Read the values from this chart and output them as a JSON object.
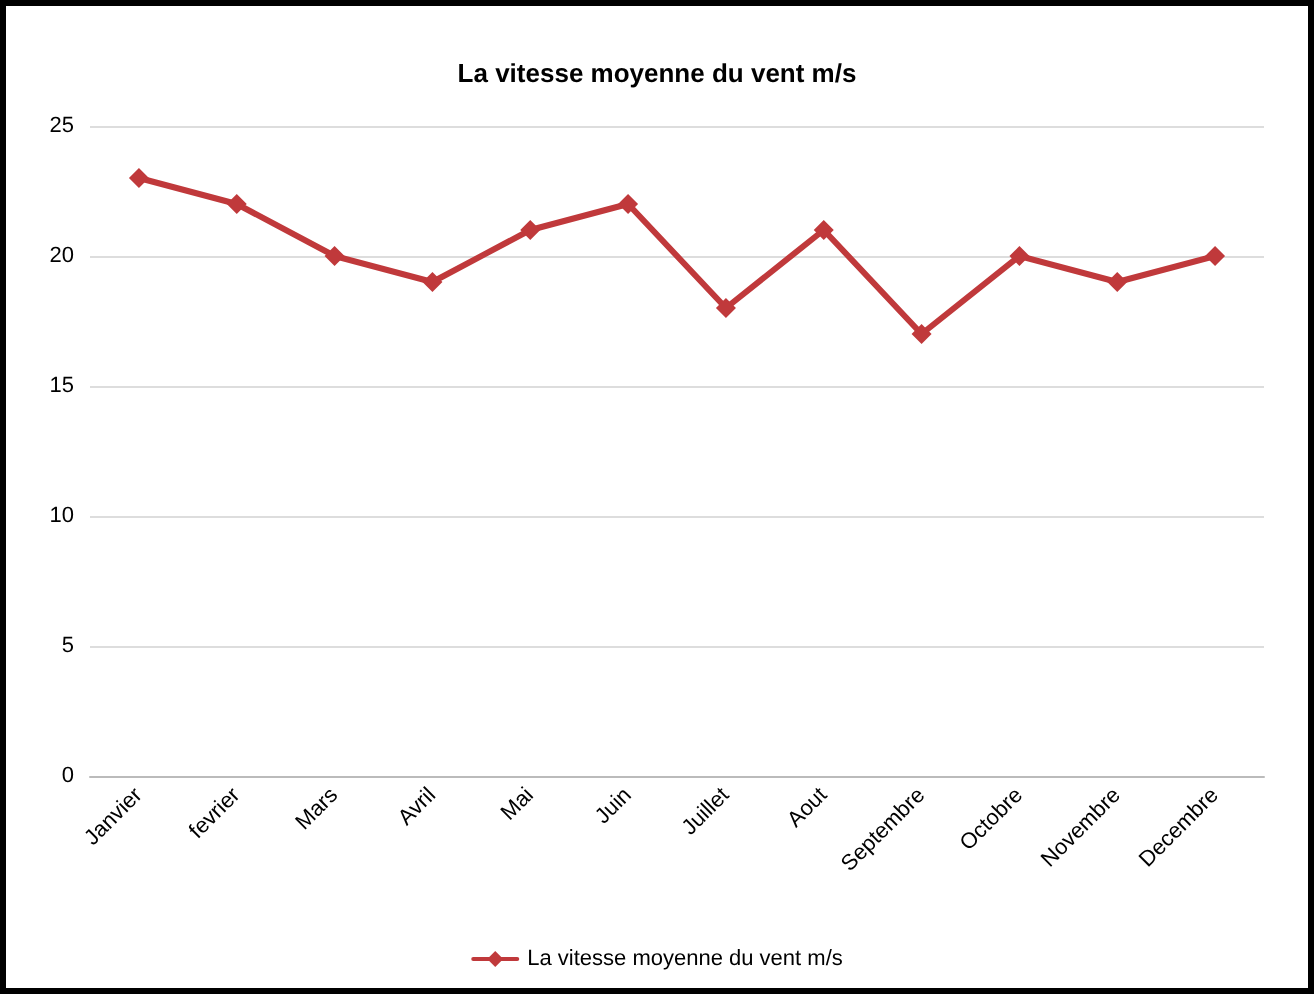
{
  "chart_data": {
    "type": "line",
    "title": "La vitesse moyenne du vent m/s",
    "categories": [
      "Janvier",
      "fevrier",
      "Mars",
      "Avril",
      "Mai",
      "Juin",
      "Juillet",
      "Aout",
      "Septembre",
      "Octobre",
      "Novembre",
      "Decembre"
    ],
    "series": [
      {
        "name": "La vitesse moyenne du vent m/s",
        "color": "#c0393b",
        "values": [
          23,
          22,
          20,
          19,
          21,
          22,
          18,
          21,
          17,
          20,
          19,
          20
        ]
      }
    ],
    "ylim": [
      0,
      25
    ],
    "yticks": [
      0,
      5,
      10,
      15,
      20,
      25
    ],
    "grid": "y",
    "legend": "bottom",
    "marker": "diamond",
    "line_style": "solid"
  }
}
